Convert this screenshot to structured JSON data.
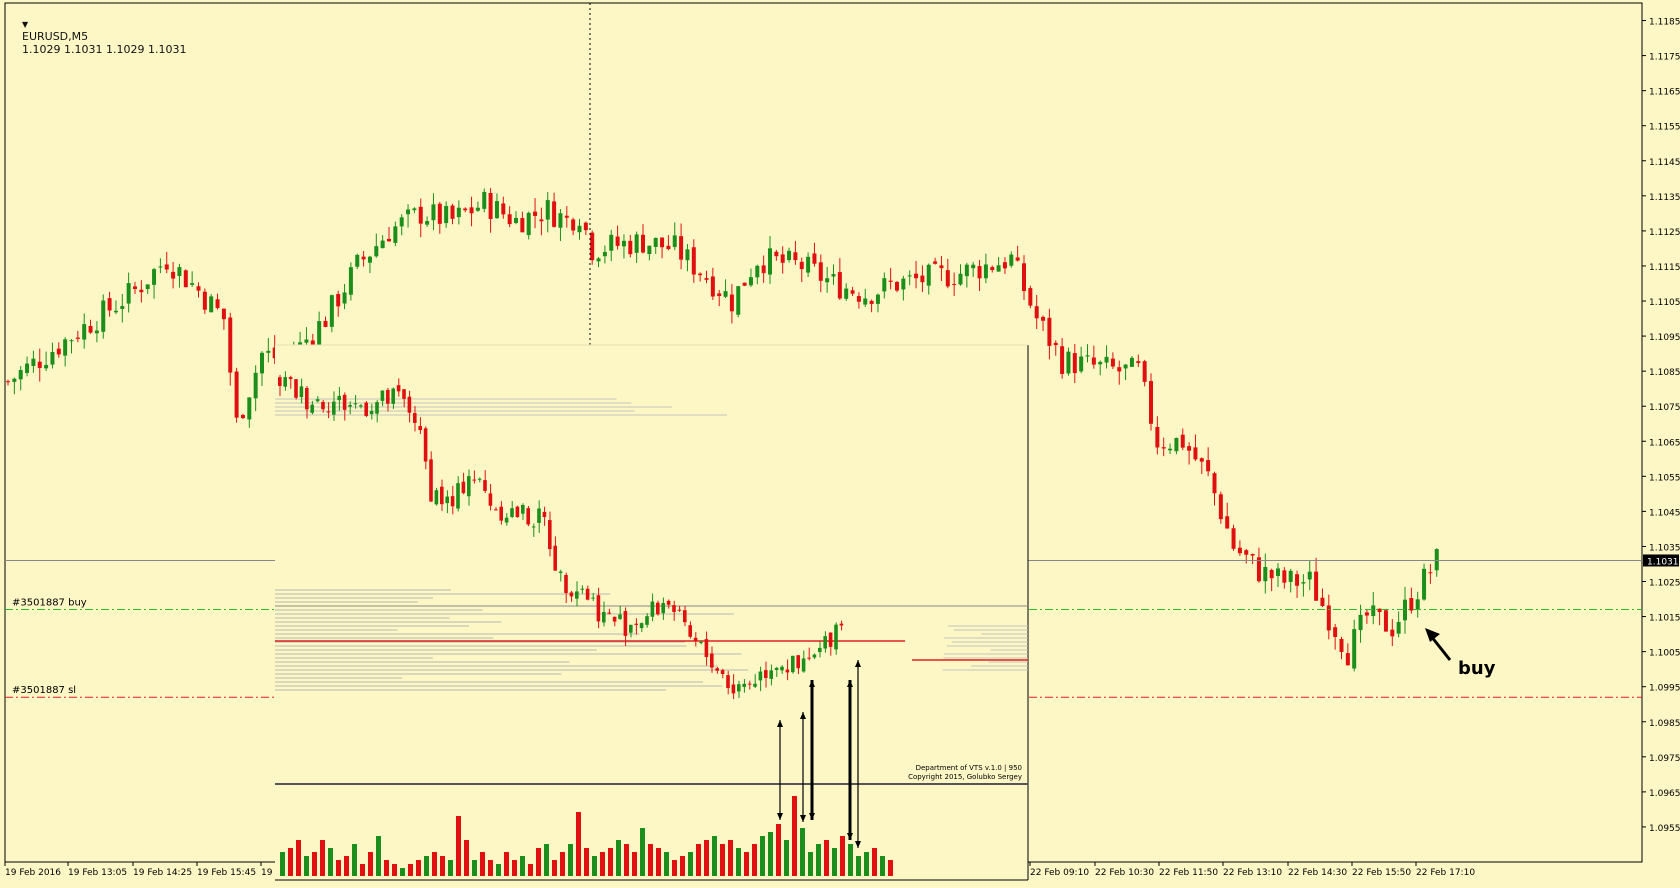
{
  "header": {
    "symbol": "EURUSD,M5",
    "ohlc": "1.1029 1.1031 1.1029 1.1031"
  },
  "colors": {
    "background": "#fdf7c6",
    "bull": "#1b8e1b",
    "bear": "#e01010",
    "buy_line": "#2eb82e",
    "sl_line": "#e02020",
    "axis": "#000000"
  },
  "chart_data": {
    "type": "candlestick",
    "symbol": "EURUSD",
    "timeframe": "M5",
    "price_axis": {
      "min": 1.0945,
      "max": 1.119,
      "ticks": [
        "1.1185",
        "1.1175",
        "1.1165",
        "1.1155",
        "1.1145",
        "1.1135",
        "1.1125",
        "1.1115",
        "1.1105",
        "1.1095",
        "1.1085",
        "1.1075",
        "1.1065",
        "1.1055",
        "1.1045",
        "1.1035",
        "1.1025",
        "1.1015",
        "1.1005",
        "1.0995",
        "1.0985",
        "1.0975",
        "1.0965",
        "1.0955"
      ]
    },
    "time_axis_labels": [
      "19 Feb 2016",
      "19 Feb 13:05",
      "19 Feb 14:25",
      "19 Feb 15:45",
      "19",
      "22 Feb 09:10",
      "22 Feb 10:30",
      "22 Feb 11:50",
      "22 Feb 13:10",
      "22 Feb 14:30",
      "22 Feb 15:50",
      "22 Feb 17:10"
    ],
    "current_price": "1.1031",
    "order_lines": [
      {
        "label": "#3501887 buy",
        "price": 1.1017,
        "style": "dash-dot",
        "color": "#2eb82e"
      },
      {
        "label": "#3501887 sl",
        "price": 1.0992,
        "style": "dash-dot",
        "color": "#e02020"
      }
    ],
    "annotation": "buy",
    "anchors": [
      [
        0,
        1.1082
      ],
      [
        10,
        1.1095
      ],
      [
        20,
        1.1108
      ],
      [
        25,
        1.1117
      ],
      [
        30,
        1.1108
      ],
      [
        34,
        1.11
      ],
      [
        36,
        1.107
      ],
      [
        40,
        1.109
      ],
      [
        44,
        1.1088
      ],
      [
        50,
        1.11
      ],
      [
        55,
        1.1115
      ],
      [
        60,
        1.1125
      ],
      [
        65,
        1.113
      ],
      [
        70,
        1.1128
      ],
      [
        75,
        1.1133
      ],
      [
        80,
        1.1128
      ],
      [
        85,
        1.1131
      ],
      [
        88,
        1.1128
      ],
      [
        90,
        1.113
      ],
      [
        92,
        1.112
      ],
      [
        100,
        1.1122
      ],
      [
        105,
        1.112
      ],
      [
        110,
        1.1112
      ],
      [
        114,
        1.1105
      ],
      [
        118,
        1.1117
      ],
      [
        125,
        1.1115
      ],
      [
        130,
        1.111
      ],
      [
        135,
        1.1107
      ],
      [
        140,
        1.111
      ],
      [
        150,
        1.1113
      ],
      [
        158,
        1.1117
      ],
      [
        162,
        1.11
      ],
      [
        166,
        1.1088
      ],
      [
        175,
        1.1085
      ],
      [
        178,
        1.1085
      ],
      [
        181,
        1.1065
      ],
      [
        185,
        1.1065
      ],
      [
        189,
        1.1055
      ],
      [
        193,
        1.1035
      ],
      [
        197,
        1.1028
      ],
      [
        201,
        1.1025
      ],
      [
        205,
        1.1025
      ],
      [
        208,
        1.1015
      ],
      [
        211,
        1.1005
      ],
      [
        214,
        1.1015
      ],
      [
        218,
        1.1012
      ],
      [
        221,
        1.102
      ],
      [
        225,
        1.1031
      ]
    ],
    "inset": {
      "credit_line1": "Department of VTS  v.1.0 | 950",
      "credit_line2": "Copyright 2015, Golubko Sergey",
      "anchors": [
        [
          0,
          1.1085
        ],
        [
          5,
          1.108
        ],
        [
          15,
          1.1078
        ],
        [
          22,
          1.108
        ],
        [
          25,
          1.1075
        ],
        [
          28,
          1.1055
        ],
        [
          32,
          1.105
        ],
        [
          35,
          1.106
        ],
        [
          40,
          1.105
        ],
        [
          45,
          1.1048
        ],
        [
          49,
          1.1046
        ],
        [
          52,
          1.103
        ],
        [
          56,
          1.1028
        ],
        [
          60,
          1.102
        ],
        [
          64,
          1.1018
        ],
        [
          68,
          1.102
        ],
        [
          72,
          1.1025
        ],
        [
          75,
          1.1015
        ],
        [
          80,
          1.1008
        ],
        [
          84,
          1.1
        ],
        [
          88,
          1.1003
        ],
        [
          92,
          1.1008
        ],
        [
          96,
          1.1005
        ],
        [
          100,
          1.101
        ],
        [
          104,
          1.102
        ]
      ],
      "volumes": [
        6,
        7,
        9,
        5,
        6,
        9,
        7,
        4,
        5,
        8,
        3,
        6,
        10,
        4,
        3,
        2,
        3,
        4,
        5,
        6,
        5,
        4,
        15,
        9,
        4,
        6,
        4,
        3,
        6,
        4,
        5,
        3,
        7,
        8,
        4,
        6,
        8,
        16,
        7,
        5,
        6,
        7,
        9,
        8,
        6,
        12,
        8,
        7,
        6,
        4,
        5,
        6,
        8,
        9,
        10,
        8,
        9,
        7,
        6,
        8,
        10,
        11,
        13,
        9,
        20,
        12,
        6,
        8,
        9,
        7,
        10,
        8,
        5,
        6,
        7,
        5,
        4
      ]
    }
  }
}
